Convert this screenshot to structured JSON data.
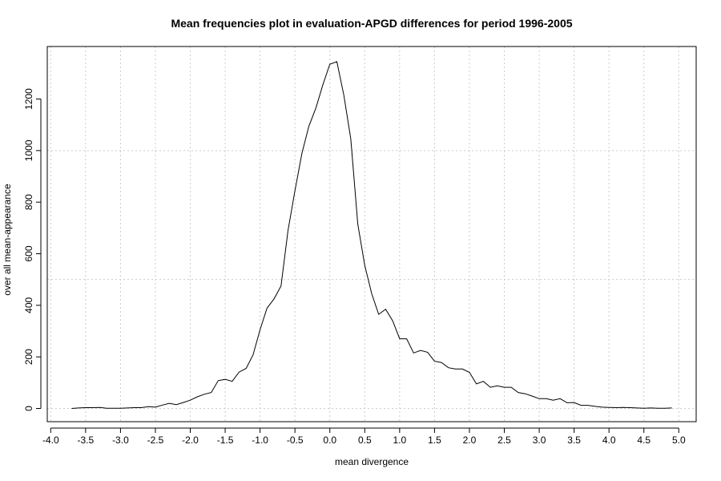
{
  "chart_data": {
    "type": "line",
    "title": "Mean frequencies plot in evaluation-APGD differences for period 1996-2005",
    "xlabel": "mean divergence",
    "ylabel": "over all mean-appearance",
    "xlim": [
      -4.0,
      5.0
    ],
    "ylim": [
      0,
      1350
    ],
    "xticks": [
      "-4.0",
      "-3.5",
      "-3.0",
      "-2.5",
      "-2.0",
      "-1.5",
      "-1.0",
      "-0.5",
      "0.0",
      "0.5",
      "1.0",
      "1.5",
      "2.0",
      "2.5",
      "3.0",
      "3.5",
      "4.0",
      "4.5",
      "5.0"
    ],
    "yticks": [
      "0",
      "200",
      "400",
      "600",
      "800",
      "1000",
      "1200"
    ],
    "grid": true,
    "series": [
      {
        "x": [
          -3.7,
          -3.6,
          -3.5,
          -3.4,
          -3.3,
          -3.2,
          -3.1,
          -3.0,
          -2.9,
          -2.8,
          -2.7,
          -2.6,
          -2.5,
          -2.4,
          -2.3,
          -2.2,
          -2.1,
          -2.0,
          -1.9,
          -1.8,
          -1.7,
          -1.6,
          -1.5,
          -1.4,
          -1.3,
          -1.2,
          -1.1,
          -1.0,
          -0.9,
          -0.8,
          -0.7,
          -0.6,
          -0.5,
          -0.4,
          -0.3,
          -0.2,
          -0.1,
          0.0,
          0.1,
          0.2,
          0.3,
          0.4,
          0.5,
          0.6,
          0.7,
          0.8,
          0.9,
          1.0,
          1.1,
          1.2,
          1.3,
          1.4,
          1.5,
          1.6,
          1.7,
          1.8,
          1.9,
          2.0,
          2.1,
          2.2,
          2.3,
          2.4,
          2.5,
          2.6,
          2.7,
          2.8,
          2.9,
          3.0,
          3.1,
          3.2,
          3.3,
          3.4,
          3.5,
          3.6,
          3.7,
          3.8,
          3.9,
          4.0,
          4.1,
          4.2,
          4.3,
          4.4,
          4.5,
          4.6,
          4.7,
          4.8,
          4.9
        ],
        "y": [
          0,
          2,
          3,
          3,
          4,
          1,
          1,
          1,
          2,
          3,
          3,
          7,
          5,
          13,
          20,
          15,
          23,
          32,
          45,
          55,
          62,
          108,
          113,
          105,
          141,
          155,
          208,
          305,
          389,
          425,
          475,
          690,
          845,
          990,
          1095,
          1165,
          1255,
          1335,
          1345,
          1215,
          1045,
          715,
          555,
          445,
          365,
          385,
          340,
          270,
          270,
          215,
          225,
          218,
          183,
          178,
          158,
          153,
          153,
          140,
          95,
          105,
          82,
          88,
          82,
          82,
          62,
          57,
          48,
          38,
          38,
          32,
          38,
          22,
          23,
          12,
          12,
          8,
          5,
          4,
          3,
          4,
          3,
          2,
          1,
          2,
          1,
          1,
          2
        ]
      }
    ]
  }
}
